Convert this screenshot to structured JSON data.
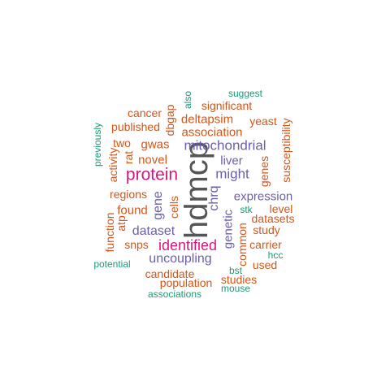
{
  "colors": {
    "gray": "#555555",
    "magenta": "#d4177f",
    "purple": "#6b60a8",
    "orange": "#d2561a",
    "teal": "#1b9b77"
  },
  "words": [
    {
      "text": "hdmcp",
      "color": "gray",
      "vertical": true
    },
    {
      "text": "protein",
      "color": "magenta",
      "vertical": false
    },
    {
      "text": "identified",
      "color": "magenta",
      "vertical": false
    },
    {
      "text": "mitochondrial",
      "color": "purple",
      "vertical": false
    },
    {
      "text": "might",
      "color": "purple",
      "vertical": false
    },
    {
      "text": "expression",
      "color": "purple",
      "vertical": false
    },
    {
      "text": "uncoupling",
      "color": "purple",
      "vertical": false
    },
    {
      "text": "dataset",
      "color": "purple",
      "vertical": false
    },
    {
      "text": "gene",
      "color": "purple",
      "vertical": true
    },
    {
      "text": "liver",
      "color": "purple",
      "vertical": false
    },
    {
      "text": "chrq",
      "color": "purple",
      "vertical": true
    },
    {
      "text": "genetic",
      "color": "purple",
      "vertical": true
    },
    {
      "text": "suggest",
      "color": "teal",
      "vertical": false
    },
    {
      "text": "also",
      "color": "teal",
      "vertical": true
    },
    {
      "text": "significant",
      "color": "orange",
      "vertical": false
    },
    {
      "text": "cancer",
      "color": "orange",
      "vertical": false
    },
    {
      "text": "dbgap",
      "color": "orange",
      "vertical": true
    },
    {
      "text": "published",
      "color": "orange",
      "vertical": false
    },
    {
      "text": "deltapsim",
      "color": "orange",
      "vertical": false
    },
    {
      "text": "yeast",
      "color": "orange",
      "vertical": false
    },
    {
      "text": "previously",
      "color": "teal",
      "vertical": true
    },
    {
      "text": "association",
      "color": "orange",
      "vertical": false
    },
    {
      "text": "susceptibility",
      "color": "orange",
      "vertical": true
    },
    {
      "text": "two",
      "color": "orange",
      "vertical": false
    },
    {
      "text": "gwas",
      "color": "orange",
      "vertical": false
    },
    {
      "text": "activity",
      "color": "orange",
      "vertical": true
    },
    {
      "text": "rat",
      "color": "orange",
      "vertical": true
    },
    {
      "text": "novel",
      "color": "orange",
      "vertical": false
    },
    {
      "text": "genes",
      "color": "orange",
      "vertical": true
    },
    {
      "text": "regions",
      "color": "orange",
      "vertical": false
    },
    {
      "text": "cells",
      "color": "orange",
      "vertical": true
    },
    {
      "text": "level",
      "color": "orange",
      "vertical": false
    },
    {
      "text": "function",
      "color": "orange",
      "vertical": true
    },
    {
      "text": "atp",
      "color": "orange",
      "vertical": true
    },
    {
      "text": "found",
      "color": "orange",
      "vertical": false
    },
    {
      "text": "stk",
      "color": "teal",
      "vertical": false
    },
    {
      "text": "datasets",
      "color": "orange",
      "vertical": false
    },
    {
      "text": "study",
      "color": "orange",
      "vertical": false
    },
    {
      "text": "common",
      "color": "orange",
      "vertical": true
    },
    {
      "text": "snps",
      "color": "orange",
      "vertical": false
    },
    {
      "text": "carrier",
      "color": "orange",
      "vertical": false
    },
    {
      "text": "hcc",
      "color": "teal",
      "vertical": false
    },
    {
      "text": "potential",
      "color": "teal",
      "vertical": false
    },
    {
      "text": "used",
      "color": "orange",
      "vertical": false
    },
    {
      "text": "bst",
      "color": "teal",
      "vertical": false
    },
    {
      "text": "candidate",
      "color": "orange",
      "vertical": false
    },
    {
      "text": "studies",
      "color": "orange",
      "vertical": false
    },
    {
      "text": "population",
      "color": "orange",
      "vertical": false
    },
    {
      "text": "mouse",
      "color": "teal",
      "vertical": false
    },
    {
      "text": "associations",
      "color": "teal",
      "vertical": false
    }
  ]
}
